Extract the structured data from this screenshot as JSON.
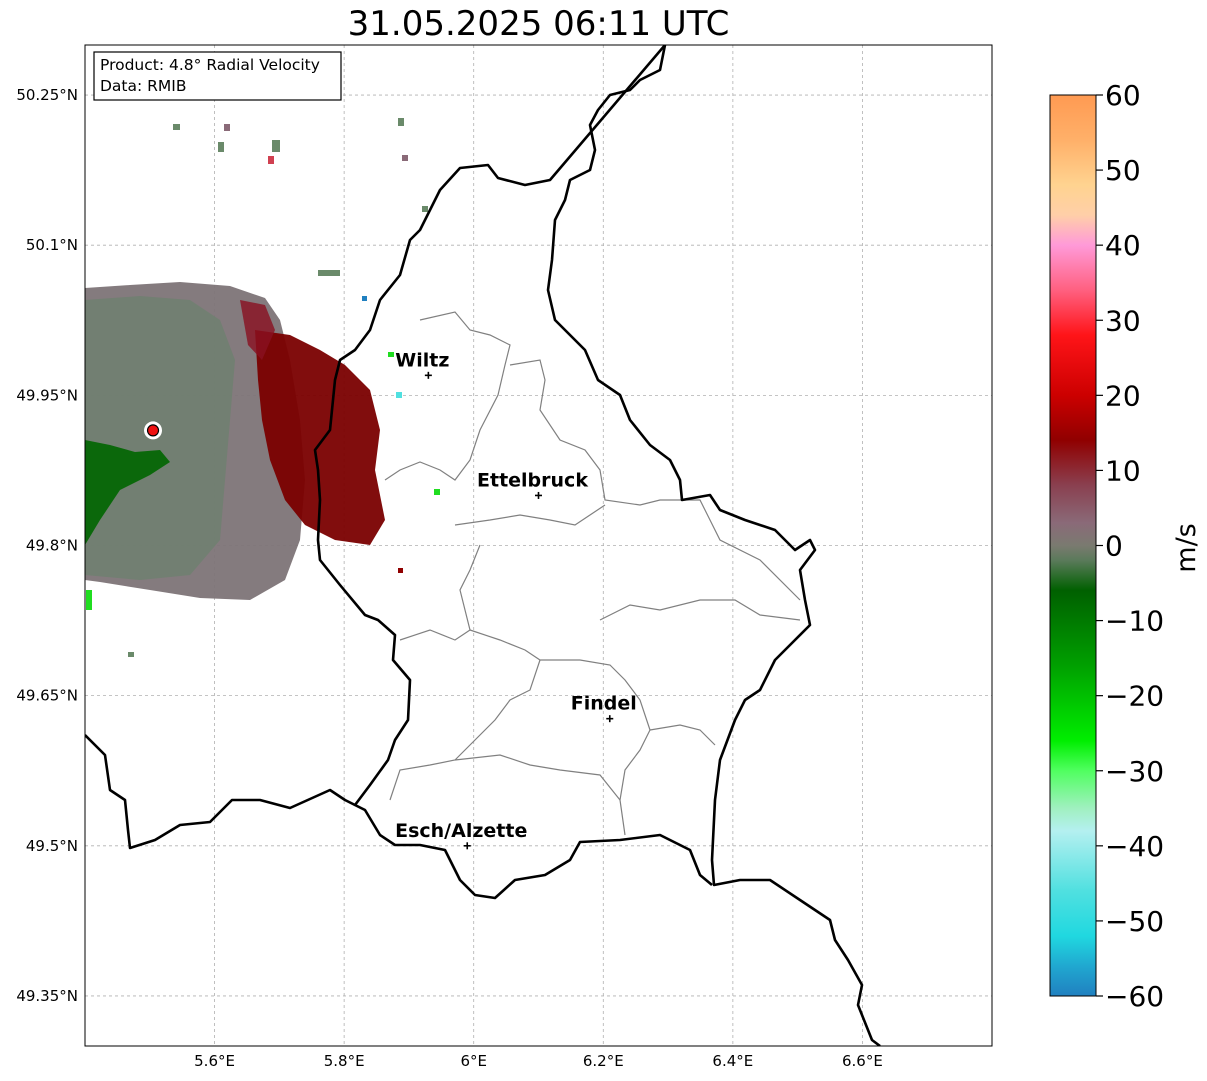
{
  "title": "31.05.2025 06:11 UTC",
  "info_box": {
    "product": "Product: 4.8° Radial Velocity",
    "data": "Data: RMIB"
  },
  "axes": {
    "x_ticks": [
      {
        "value": 5.6,
        "label": "5.6°E"
      },
      {
        "value": 5.8,
        "label": "5.8°E"
      },
      {
        "value": 6.0,
        "label": "6°E"
      },
      {
        "value": 6.2,
        "label": "6.2°E"
      },
      {
        "value": 6.4,
        "label": "6.4°E"
      },
      {
        "value": 6.6,
        "label": "6.6°E"
      }
    ],
    "y_ticks": [
      {
        "value": 50.25,
        "label": "50.25°N"
      },
      {
        "value": 50.1,
        "label": "50.1°N"
      },
      {
        "value": 49.95,
        "label": "49.95°N"
      },
      {
        "value": 49.8,
        "label": "49.8°N"
      },
      {
        "value": 49.65,
        "label": "49.65°N"
      },
      {
        "value": 49.5,
        "label": "49.5°N"
      },
      {
        "value": 49.35,
        "label": "49.35°N"
      }
    ],
    "lon_range": [
      5.4,
      6.8
    ],
    "lat_range": [
      49.3,
      50.3
    ],
    "grid": true
  },
  "cities": [
    {
      "name": "Wiltz",
      "lon": 5.93,
      "lat": 49.97
    },
    {
      "name": "Ettelbruck",
      "lon": 6.1,
      "lat": 49.85
    },
    {
      "name": "Findel",
      "lon": 6.21,
      "lat": 49.627
    },
    {
      "name": "Esch/Alzette",
      "lon": 5.99,
      "lat": 49.5
    }
  ],
  "radar_site": {
    "lon": 5.505,
    "lat": 49.915
  },
  "colorbar": {
    "label": "m/s",
    "min": -60,
    "max": 60,
    "ticks": [
      {
        "value": 60,
        "label": "60"
      },
      {
        "value": 50,
        "label": "50"
      },
      {
        "value": 40,
        "label": "40"
      },
      {
        "value": 30,
        "label": "30"
      },
      {
        "value": 20,
        "label": "20"
      },
      {
        "value": 10,
        "label": "10"
      },
      {
        "value": 0,
        "label": "0"
      },
      {
        "value": -10,
        "label": "−10"
      },
      {
        "value": -20,
        "label": "−20"
      },
      {
        "value": -30,
        "label": "−30"
      },
      {
        "value": -40,
        "label": "−40"
      },
      {
        "value": -50,
        "label": "−50"
      },
      {
        "value": -60,
        "label": "−60"
      }
    ],
    "stops": [
      {
        "value": 60,
        "color": "#ff9a52"
      },
      {
        "value": 54,
        "color": "#ffb069"
      },
      {
        "value": 48,
        "color": "#ffd390"
      },
      {
        "value": 44,
        "color": "#ffcfa8"
      },
      {
        "value": 40,
        "color": "#ff9ad8"
      },
      {
        "value": 34,
        "color": "#ff6080"
      },
      {
        "value": 28,
        "color": "#ff1418"
      },
      {
        "value": 20,
        "color": "#cc0000"
      },
      {
        "value": 14,
        "color": "#900000"
      },
      {
        "value": 8,
        "color": "#8a4050"
      },
      {
        "value": 3,
        "color": "#8a6a78"
      },
      {
        "value": 0,
        "color": "#7a7a70"
      },
      {
        "value": -2,
        "color": "#5a7a5a"
      },
      {
        "value": -6,
        "color": "#006000"
      },
      {
        "value": -16,
        "color": "#00a000"
      },
      {
        "value": -26,
        "color": "#00ee00"
      },
      {
        "value": -30,
        "color": "#50ff60"
      },
      {
        "value": -35,
        "color": "#a0f0c0"
      },
      {
        "value": -38,
        "color": "#b4f0f0"
      },
      {
        "value": -46,
        "color": "#50e0e0"
      },
      {
        "value": -52,
        "color": "#20d8e0"
      },
      {
        "value": -56,
        "color": "#20a8d0"
      },
      {
        "value": -60,
        "color": "#2080c0"
      }
    ]
  }
}
